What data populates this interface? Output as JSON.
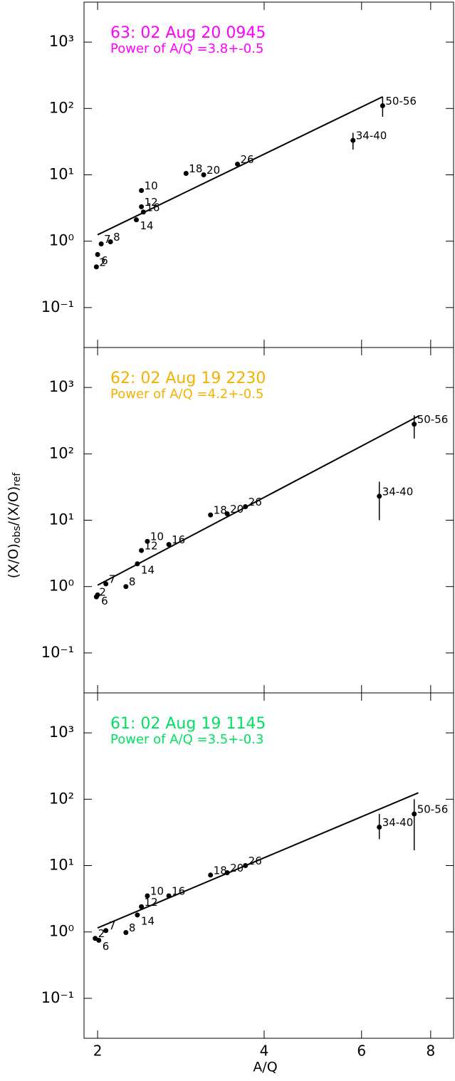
{
  "chart_data": [
    {
      "type": "scatter",
      "title": "63:  02 Aug 20 0945",
      "subtitle": "Power of A/Q =3.8+-0.5",
      "title_color": "#ff00ff",
      "labels": [
        "2",
        "6",
        "7",
        "8",
        "10",
        "12",
        "14",
        "16",
        "18",
        "20",
        "26",
        "34-40",
        "50-56"
      ],
      "x": [
        1.99,
        2.0,
        2.03,
        2.11,
        2.4,
        2.4,
        2.35,
        2.42,
        2.89,
        3.11,
        3.58,
        5.79,
        6.55
      ],
      "values": [
        0.41,
        0.63,
        0.91,
        0.98,
        5.8,
        3.3,
        2.1,
        2.75,
        10.5,
        10.0,
        14.5,
        33,
        110
      ],
      "err_low": [
        null,
        null,
        null,
        null,
        null,
        null,
        null,
        null,
        null,
        null,
        null,
        24,
        75
      ],
      "err_high": [
        null,
        null,
        null,
        null,
        null,
        null,
        null,
        null,
        null,
        null,
        null,
        43,
        150
      ],
      "fit": {
        "x": [
          2.0,
          6.55
        ],
        "y": [
          1.25,
          150
        ]
      },
      "color": "#000000",
      "xlog": true,
      "ylog": true,
      "xlim": [
        1.89,
        8.8
      ],
      "ylim": [
        0.025,
        4000
      ],
      "xticks": [
        2,
        4,
        6,
        8
      ],
      "yticks": [
        {
          "value": 0.1,
          "label": "10⁻¹"
        },
        {
          "value": 1,
          "label": "10⁰"
        },
        {
          "value": 10,
          "label": "10¹"
        },
        {
          "value": 100,
          "label": "10²"
        },
        {
          "value": 1000,
          "label": "10³"
        }
      ]
    },
    {
      "type": "scatter",
      "title": "62:  02 Aug 19 2230",
      "subtitle": "Power of A/Q =4.2+-0.5",
      "title_color": "#f5b000",
      "ylabel": [
        "(X/O)",
        "obs",
        "/(X/O)",
        "ref"
      ],
      "labels": [
        "2",
        "6",
        "7",
        "8",
        "10",
        "12",
        "14",
        "16",
        "18",
        "20",
        "26",
        "34-40",
        "50-56"
      ],
      "x": [
        1.99,
        2.0,
        2.07,
        2.25,
        2.46,
        2.4,
        2.36,
        2.69,
        3.2,
        3.43,
        3.7,
        6.46,
        7.47
      ],
      "values": [
        0.7,
        0.75,
        1.1,
        1.0,
        4.8,
        3.5,
        2.2,
        4.3,
        12,
        12.5,
        16,
        23,
        280
      ],
      "err_low": [
        null,
        null,
        null,
        null,
        null,
        null,
        null,
        null,
        null,
        null,
        null,
        10,
        170
      ],
      "err_high": [
        null,
        null,
        null,
        null,
        null,
        null,
        null,
        null,
        null,
        null,
        null,
        38,
        380
      ],
      "fit": {
        "x": [
          2.0,
          7.6
        ],
        "y": [
          1.05,
          370
        ]
      },
      "color": "#000000",
      "xlog": true,
      "ylog": true,
      "xlim": [
        1.89,
        8.8
      ],
      "ylim": [
        0.025,
        4000
      ],
      "xticks": [
        2,
        4,
        6,
        8
      ],
      "yticks": [
        {
          "value": 0.1,
          "label": "10⁻¹"
        },
        {
          "value": 1,
          "label": "10⁰"
        },
        {
          "value": 10,
          "label": "10¹"
        },
        {
          "value": 100,
          "label": "10²"
        },
        {
          "value": 1000,
          "label": "10³"
        }
      ]
    },
    {
      "type": "scatter",
      "title": "61:  02 Aug 19 1145",
      "subtitle": "Power of A/Q =3.5+-0.3",
      "title_color": "#00e060",
      "xlabel": "A/Q",
      "show_xtick_labels": true,
      "labels": [
        "2",
        "6",
        "7",
        "8",
        "10",
        "12",
        "14",
        "16",
        "18",
        "20",
        "26",
        "34-40",
        "50-56"
      ],
      "x": [
        1.98,
        2.01,
        2.07,
        2.25,
        2.46,
        2.4,
        2.36,
        2.69,
        3.2,
        3.43,
        3.7,
        6.46,
        7.47
      ],
      "values": [
        0.8,
        0.75,
        1.05,
        0.98,
        3.5,
        2.4,
        1.8,
        3.5,
        7.2,
        7.8,
        10,
        38,
        60
      ],
      "err_low": [
        null,
        null,
        null,
        null,
        null,
        null,
        null,
        null,
        null,
        null,
        null,
        25,
        17
      ],
      "err_high": [
        null,
        null,
        null,
        null,
        null,
        null,
        null,
        null,
        null,
        null,
        null,
        60,
        100
      ],
      "fit": {
        "x": [
          2.0,
          7.6
        ],
        "y": [
          1.15,
          125
        ]
      },
      "color": "#000000",
      "xlog": true,
      "ylog": true,
      "xlim": [
        1.89,
        8.8
      ],
      "ylim": [
        0.025,
        4000
      ],
      "xticks": [
        2,
        4,
        6,
        8
      ],
      "yticks": [
        {
          "value": 0.1,
          "label": "10⁻¹"
        },
        {
          "value": 1,
          "label": "10⁰"
        },
        {
          "value": 10,
          "label": "10¹"
        },
        {
          "value": 100,
          "label": "10²"
        },
        {
          "value": 1000,
          "label": "10³"
        }
      ]
    }
  ]
}
